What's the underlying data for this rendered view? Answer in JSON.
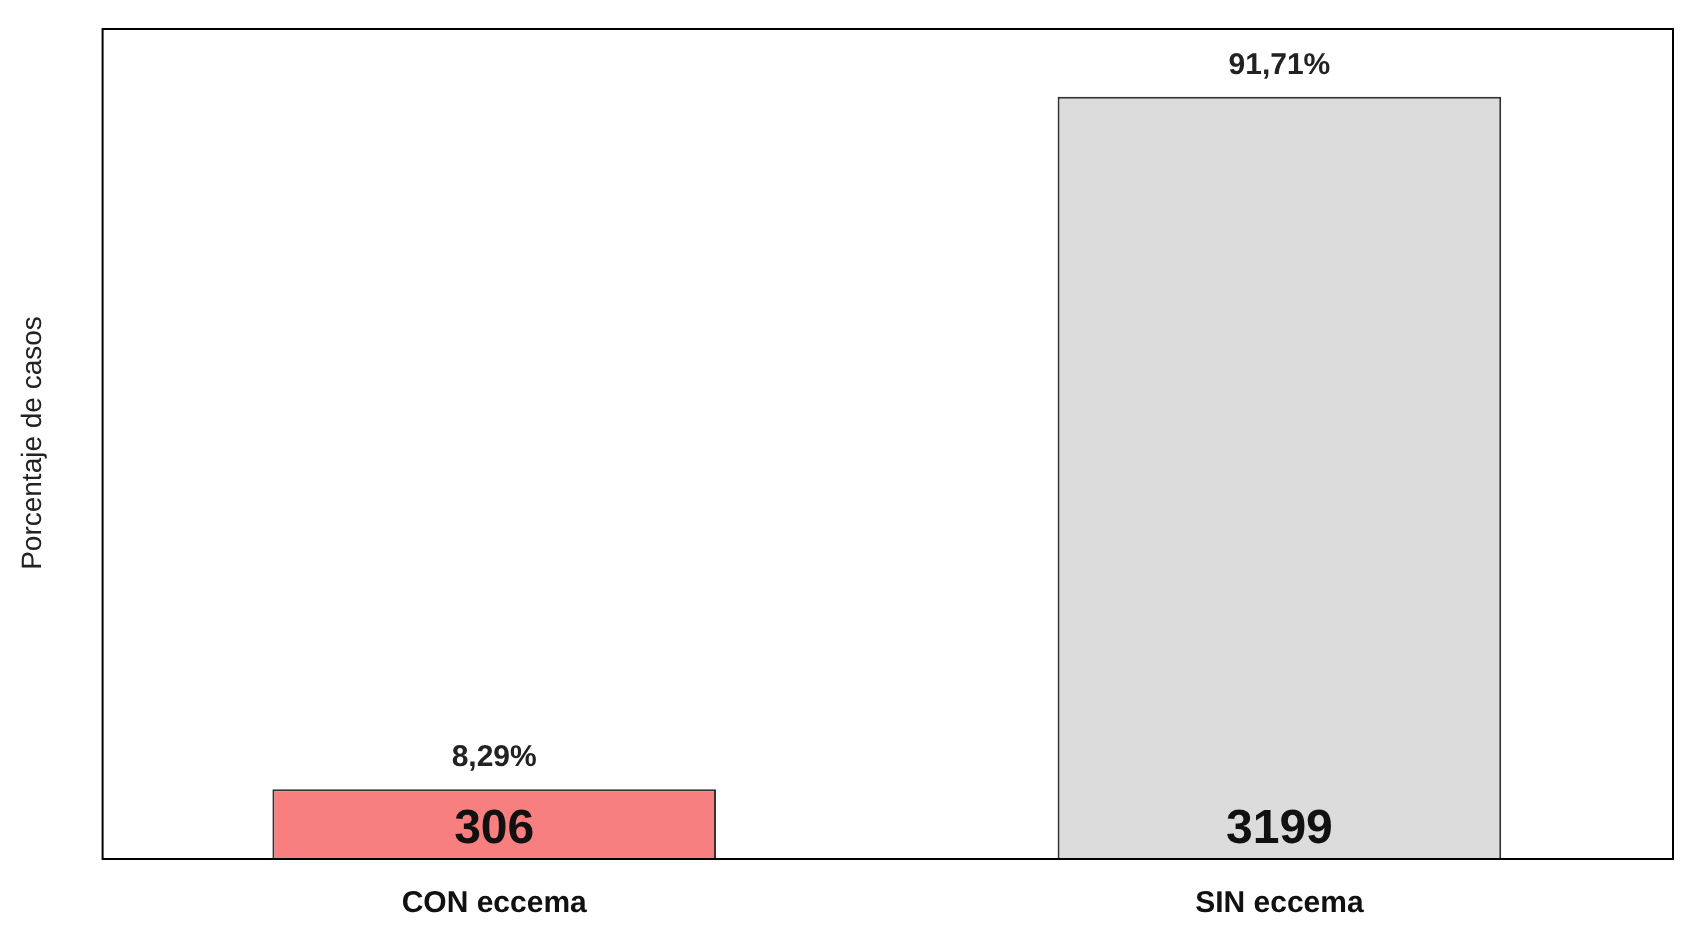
{
  "chart_data": {
    "type": "bar",
    "ylabel": "Porcentaje de casos",
    "categories": [
      "CON eccema",
      "SIN eccema"
    ],
    "values": [
      8.29,
      91.71
    ],
    "colors": [
      "#f77f7f",
      "#dcdcdc"
    ],
    "value_labels": [
      "8,29%",
      "91,71%"
    ],
    "ylim": [
      0,
      100
    ],
    "tick_labels": "x",
    "grid": false,
    "legend": false,
    "annotations": [
      {
        "text": "306",
        "x": "CON eccema",
        "y": 0
      },
      {
        "text": "3199",
        "x": "SIN eccema",
        "y": 0
      }
    ]
  }
}
